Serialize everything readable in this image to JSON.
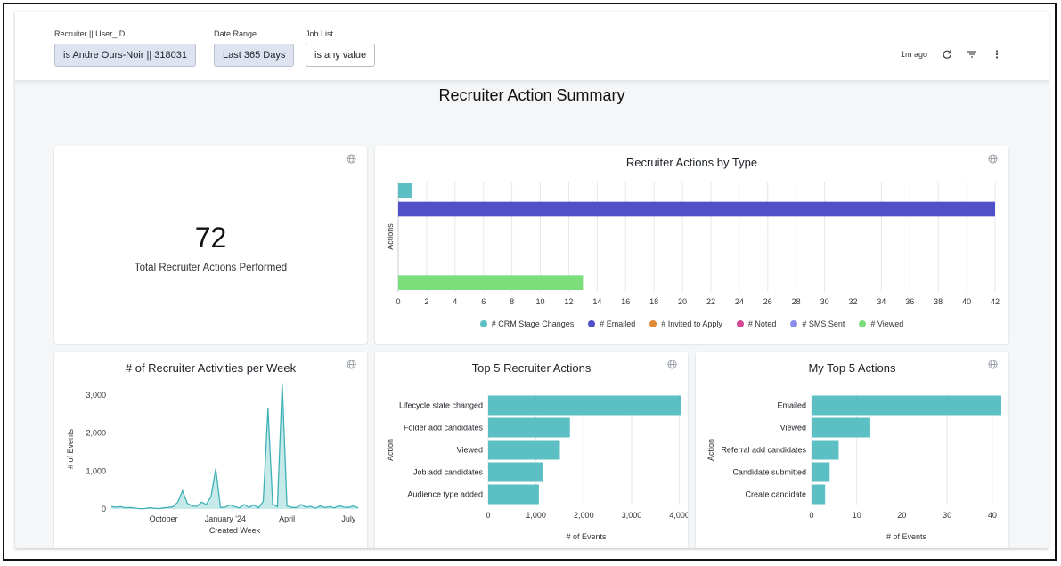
{
  "filters": [
    {
      "label": "Recruiter || User_ID",
      "value": "is Andre Ours-Noir || 318031",
      "active": true
    },
    {
      "label": "Date Range",
      "value": "Last 365 Days",
      "active": true
    },
    {
      "label": "Job List",
      "value": "is any value",
      "active": false
    }
  ],
  "header": {
    "updated": "1m ago",
    "refresh_icon": "refresh-icon",
    "filter_icon": "filter-icon",
    "menu_icon": "more-vert-icon"
  },
  "dashboard": {
    "title": "Recruiter Action Summary"
  },
  "kpi": {
    "value": "72",
    "caption": "Total Recruiter Actions Performed"
  },
  "colors": {
    "teal": "#5bbfc3",
    "indigo": "#5050c8",
    "orange": "#e08a3a",
    "pink": "#d54a96",
    "lavender": "#8b8ee8",
    "green": "#7bde7b"
  },
  "chart_data": [
    {
      "id": "by_type",
      "type": "bar",
      "orientation": "horizontal",
      "title": "Recruiter Actions by Type",
      "ylabel": "Actions",
      "xlabel": "",
      "xlim": [
        0,
        42
      ],
      "xticks": [
        0,
        2,
        4,
        6,
        8,
        10,
        12,
        14,
        16,
        18,
        20,
        22,
        24,
        26,
        28,
        30,
        32,
        34,
        36,
        38,
        40,
        42
      ],
      "series": [
        {
          "name": "# CRM Stage Changes",
          "value": 1,
          "color": "#5bbfc3"
        },
        {
          "name": "# Emailed",
          "value": 42,
          "color": "#5050c8"
        },
        {
          "name": "# Invited to Apply",
          "value": 0,
          "color": "#e08a3a"
        },
        {
          "name": "# Noted",
          "value": 0,
          "color": "#d54a96"
        },
        {
          "name": "# SMS Sent",
          "value": 0,
          "color": "#8b8ee8"
        },
        {
          "name": "# Viewed",
          "value": 13,
          "color": "#7bde7b"
        }
      ]
    },
    {
      "id": "per_week",
      "type": "area",
      "title": "# of Recruiter Activities per Week",
      "xlabel": "Created Week",
      "ylabel": "# of Events",
      "ylim": [
        0,
        3400
      ],
      "yticks": [
        0,
        1000,
        2000,
        3000
      ],
      "ytick_labels": [
        "0",
        "1,000",
        "2,000",
        "3,000"
      ],
      "xtick_labels": [
        {
          "label": "October",
          "week": 11
        },
        {
          "label": "January '24",
          "week": 24
        },
        {
          "label": "April",
          "week": 37
        },
        {
          "label": "July",
          "week": 50
        }
      ],
      "values": [
        60,
        50,
        60,
        30,
        40,
        20,
        10,
        10,
        30,
        20,
        10,
        30,
        40,
        60,
        180,
        480,
        150,
        80,
        70,
        180,
        120,
        330,
        1060,
        40,
        50,
        110,
        60,
        30,
        120,
        40,
        110,
        30,
        200,
        2650,
        130,
        60,
        3320,
        80,
        40,
        40,
        120,
        50,
        70,
        20,
        80,
        40,
        60,
        30,
        90,
        50,
        40,
        80,
        30
      ]
    },
    {
      "id": "top5",
      "type": "bar",
      "orientation": "horizontal",
      "title": "Top 5 Recruiter Actions",
      "xlabel": "# of Events",
      "ylabel": "Action",
      "xlim": [
        0,
        4100
      ],
      "xticks": [
        0,
        1000,
        2000,
        3000,
        4000
      ],
      "xtick_labels": [
        "0",
        "1,000",
        "2,000",
        "3,000",
        "4,000"
      ],
      "categories": [
        "Lifecycle state changed",
        "Folder add candidates",
        "Viewed",
        "Job add candidates",
        "Audience type added"
      ],
      "values": [
        4030,
        1710,
        1500,
        1150,
        1060
      ]
    },
    {
      "id": "my_top5",
      "type": "bar",
      "orientation": "horizontal",
      "title": "My Top 5 Actions",
      "xlabel": "# of Events",
      "ylabel": "Action",
      "xlim": [
        0,
        42
      ],
      "xticks": [
        0,
        10,
        20,
        30,
        40
      ],
      "xtick_labels": [
        "0",
        "10",
        "20",
        "30",
        "40"
      ],
      "categories": [
        "Emailed",
        "Viewed",
        "Referral add candidates",
        "Candidate submitted",
        "Create candidate"
      ],
      "values": [
        42,
        13,
        6,
        4,
        3
      ]
    }
  ]
}
